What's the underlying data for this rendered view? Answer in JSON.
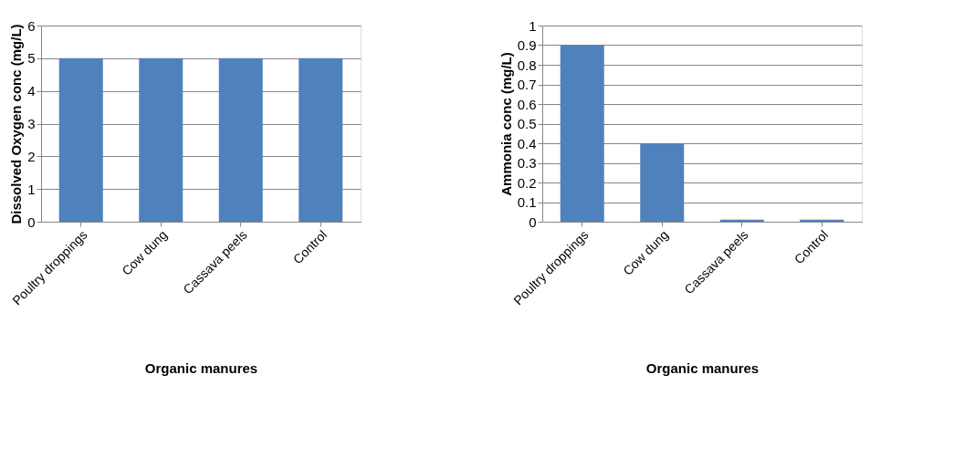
{
  "chart_data": [
    {
      "type": "bar",
      "xlabel": "Organic manures",
      "ylabel": "Dissolved Oxygen conc (mg/L)",
      "categories": [
        "Poultry droppings",
        "Cow dung",
        "Cassava peels",
        "Control"
      ],
      "values": [
        5,
        5,
        5,
        5
      ],
      "color": "#4f81bd",
      "ylim": [
        0,
        6
      ],
      "yticks": [
        0,
        1,
        2,
        3,
        4,
        5,
        6
      ],
      "grid": "y"
    },
    {
      "type": "bar",
      "xlabel": "Organic manures",
      "ylabel": "Ammonia conc (mg/L)",
      "categories": [
        "Poultry droppings",
        "Cow dung",
        "Cassava peels",
        "Control"
      ],
      "values": [
        0.9,
        0.4,
        0.01,
        0.01
      ],
      "color": "#4f81bd",
      "ylim": [
        0,
        1
      ],
      "yticks": [
        0,
        0.1,
        0.2,
        0.3,
        0.4,
        0.5,
        0.6,
        0.7,
        0.8,
        0.9,
        1
      ],
      "grid": "y"
    }
  ]
}
